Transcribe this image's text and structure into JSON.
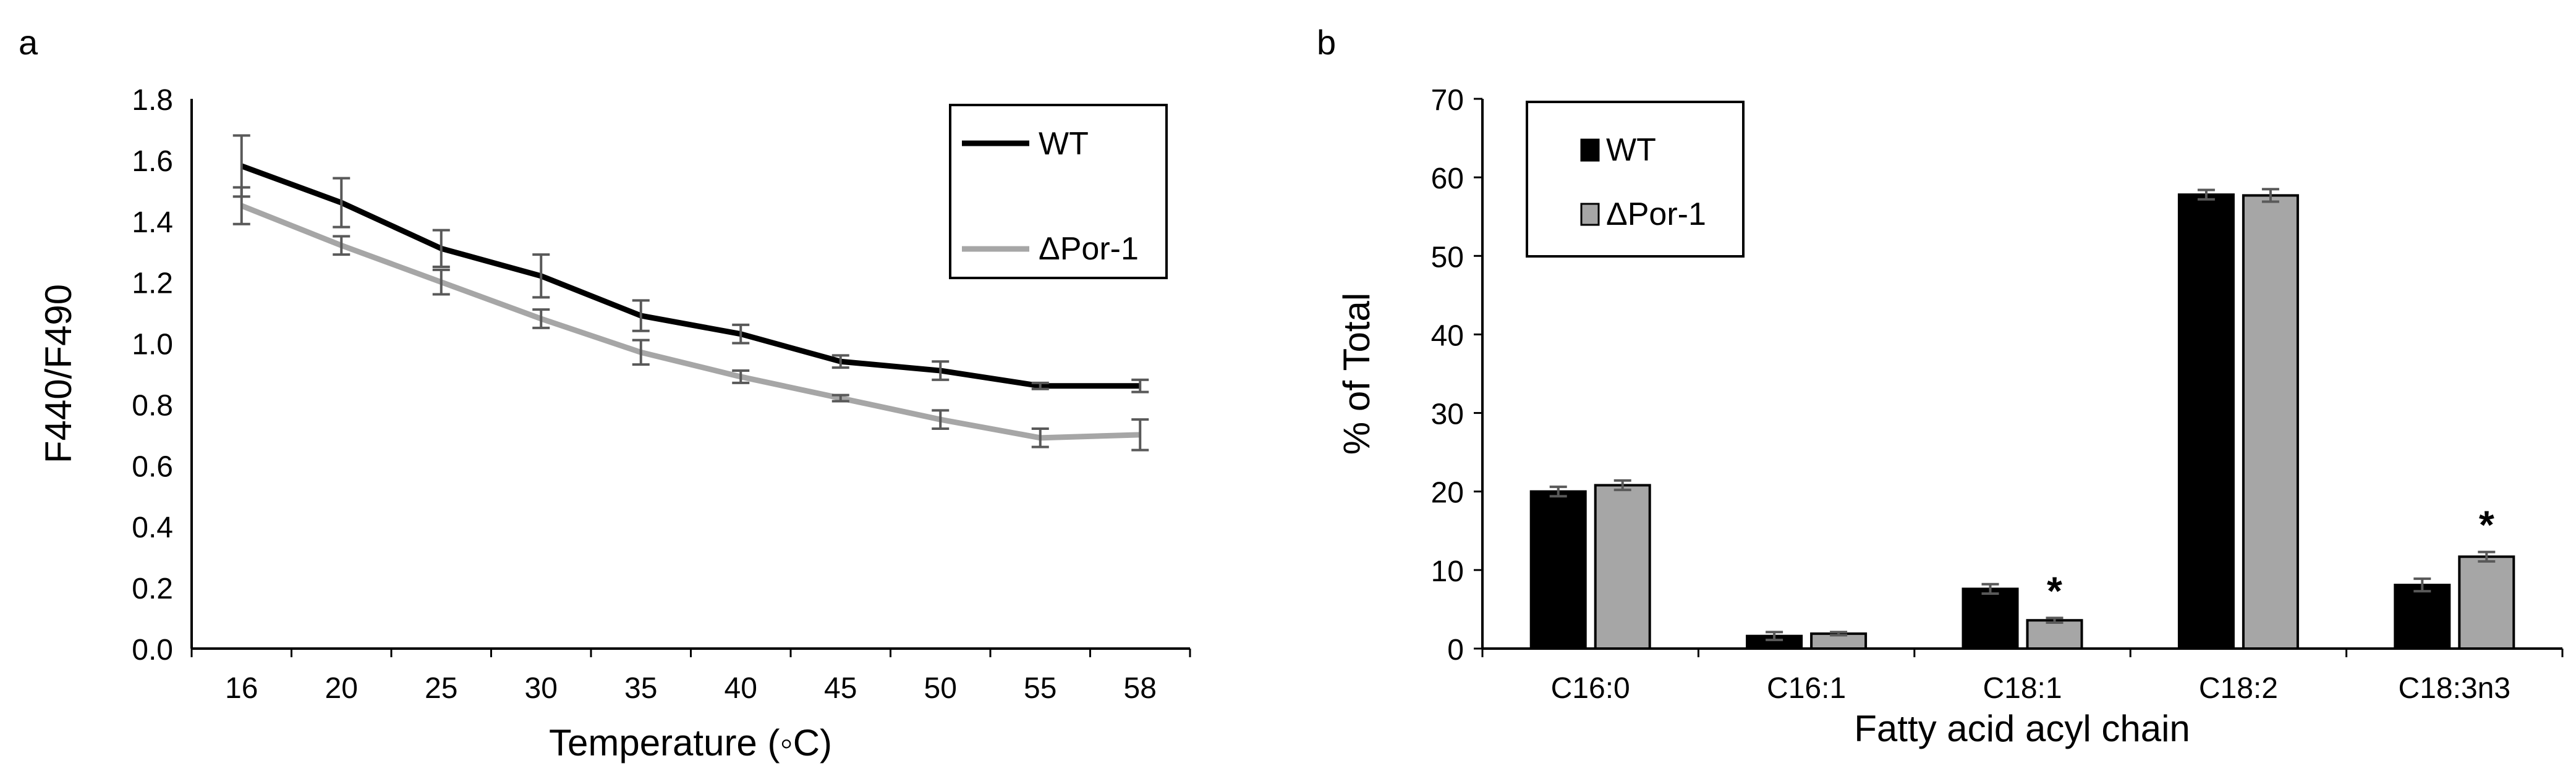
{
  "chart_data": [
    {
      "panel_label": "a",
      "type": "line",
      "title": "",
      "xlabel": "Temperature (◦C)",
      "ylabel": "F440/F490",
      "categories": [
        "16",
        "20",
        "25",
        "30",
        "35",
        "40",
        "45",
        "50",
        "55",
        "58"
      ],
      "ylim": [
        0.0,
        1.8
      ],
      "yticks": [
        "0.0",
        "0.2",
        "0.4",
        "0.6",
        "0.8",
        "1.0",
        "1.2",
        "1.4",
        "1.6",
        "1.8"
      ],
      "legend_position": "top-right",
      "series": [
        {
          "name": "WT",
          "color": "#000000",
          "values": [
            1.58,
            1.46,
            1.31,
            1.22,
            1.09,
            1.03,
            0.94,
            0.91,
            0.86,
            0.86
          ],
          "errors": [
            0.1,
            0.08,
            0.06,
            0.07,
            0.05,
            0.03,
            0.02,
            0.03,
            0.01,
            0.02
          ]
        },
        {
          "name": "ΔPor-1",
          "color": "#a6a6a6",
          "values": [
            1.45,
            1.32,
            1.2,
            1.08,
            0.97,
            0.89,
            0.82,
            0.75,
            0.69,
            0.7
          ],
          "errors": [
            0.06,
            0.03,
            0.04,
            0.03,
            0.04,
            0.02,
            0.01,
            0.03,
            0.03,
            0.05
          ]
        }
      ]
    },
    {
      "panel_label": "b",
      "type": "bar",
      "title": "",
      "xlabel": "Fatty acid acyl chain",
      "ylabel": "% of Total",
      "categories": [
        "C16:0",
        "C16:1",
        "C18:1",
        "C18:2",
        "C18:3n3"
      ],
      "ylim": [
        0,
        70
      ],
      "yticks": [
        "0",
        "10",
        "20",
        "30",
        "40",
        "50",
        "60",
        "70"
      ],
      "legend_position": "top-left",
      "significance_marker": "*",
      "series": [
        {
          "name": "WT",
          "color": "#000000",
          "values": [
            20.0,
            1.6,
            7.6,
            57.8,
            8.1
          ],
          "errors": [
            0.6,
            0.5,
            0.6,
            0.6,
            0.8
          ],
          "significant": [
            false,
            false,
            false,
            false,
            false
          ]
        },
        {
          "name": "ΔPor-1",
          "color": "#a6a6a6",
          "values": [
            20.8,
            1.9,
            3.6,
            57.7,
            11.7
          ],
          "errors": [
            0.6,
            0.2,
            0.3,
            0.8,
            0.6
          ],
          "significant": [
            false,
            false,
            true,
            false,
            true
          ]
        }
      ]
    }
  ]
}
